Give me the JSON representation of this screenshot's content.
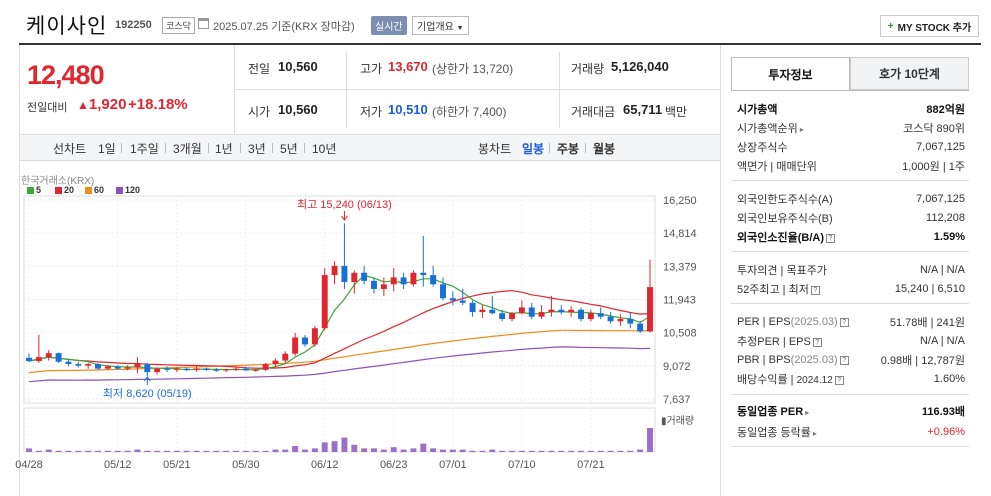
{
  "header": {
    "name": "케이사인",
    "code": "192250",
    "market": "코스닥",
    "date": "2025.07.25 기준(KRX 장마감)",
    "realtime_label": "실시간",
    "overview_label": "기업개요",
    "mystock_label": "MY STOCK 추가"
  },
  "price": {
    "current": "12,480",
    "change_label": "전일대비",
    "change": "1,920",
    "change_pct": "+18.18%"
  },
  "quote": {
    "prev_label": "전일",
    "prev": "10,560",
    "high_label": "고가",
    "high": "13,670",
    "upper_limit": "(상한가 13,720)",
    "volume_label": "거래량",
    "volume": "5,126,040",
    "open_label": "시가",
    "open": "10,560",
    "low_label": "저가",
    "low": "10,510",
    "lower_limit": "(하한가 7,400)",
    "amount_label": "거래대금",
    "amount": "65,711",
    "amount_unit": "백만"
  },
  "range_bar": {
    "line_label": "선차트",
    "line_ranges": [
      "1일",
      "1주일",
      "3개월",
      "1년",
      "3년",
      "5년",
      "10년"
    ],
    "candle_label": "봉차트",
    "candle_ranges": [
      "일봉",
      "주봉",
      "월봉"
    ],
    "active_candle": "일봉"
  },
  "chart_data": {
    "type": "candlestick",
    "source_label": "한국거래소(KRX)",
    "legend": [
      {
        "name": "5",
        "color": "#3ca53c"
      },
      {
        "name": "20",
        "color": "#e0262f"
      },
      {
        "name": "60",
        "color": "#f08a1c"
      },
      {
        "name": "120",
        "color": "#8a55b8"
      }
    ],
    "y_ticks": [
      "16,250",
      "14,814",
      "13,379",
      "11,943",
      "10,508",
      "9,072",
      "7,637"
    ],
    "ylim": [
      7637,
      16250
    ],
    "x_ticks": [
      {
        "label": "04/28",
        "index": 0
      },
      {
        "label": "05/12",
        "index": 9
      },
      {
        "label": "05/21",
        "index": 15
      },
      {
        "label": "05/30",
        "index": 22
      },
      {
        "label": "06/12",
        "index": 30
      },
      {
        "label": "06/23",
        "index": 37
      },
      {
        "label": "07/01",
        "index": 43
      },
      {
        "label": "07/10",
        "index": 50
      },
      {
        "label": "07/21",
        "index": 57
      }
    ],
    "high_note": "최고 15,240 (06/13)",
    "low_note": "최저 8,620 (05/19)",
    "volume_label": "거래량",
    "candles": [
      [
        9420,
        9600,
        9250,
        9280
      ],
      [
        9280,
        10420,
        9200,
        9450
      ],
      [
        9450,
        9750,
        9300,
        9620
      ],
      [
        9620,
        9650,
        9200,
        9250
      ],
      [
        9250,
        9350,
        9050,
        9150
      ],
      [
        9150,
        9250,
        9000,
        9080
      ],
      [
        9080,
        9200,
        8950,
        9150
      ],
      [
        9150,
        9200,
        8900,
        8950
      ],
      [
        8950,
        9100,
        8880,
        9050
      ],
      [
        9050,
        9100,
        8900,
        8950
      ],
      [
        8950,
        9100,
        8880,
        9000
      ],
      [
        9000,
        9450,
        8750,
        9150
      ],
      [
        9150,
        9200,
        8620,
        8800
      ],
      [
        8800,
        9000,
        8700,
        8950
      ],
      [
        8950,
        9050,
        8800,
        8900
      ],
      [
        8900,
        9000,
        8800,
        8950
      ],
      [
        8950,
        9000,
        8850,
        8900
      ],
      [
        8900,
        9050,
        8820,
        8960
      ],
      [
        8960,
        9000,
        8850,
        8900
      ],
      [
        8900,
        8980,
        8820,
        8870
      ],
      [
        8870,
        8950,
        8800,
        8920
      ],
      [
        8920,
        9000,
        8850,
        8950
      ],
      [
        8950,
        9050,
        8850,
        8880
      ],
      [
        8880,
        8950,
        8820,
        8900
      ],
      [
        8900,
        9200,
        8850,
        9150
      ],
      [
        9150,
        9400,
        9050,
        9300
      ],
      [
        9300,
        9700,
        9200,
        9600
      ],
      [
        9600,
        10500,
        9500,
        10300
      ],
      [
        10300,
        10400,
        9900,
        10000
      ],
      [
        10000,
        10800,
        9900,
        10700
      ],
      [
        10700,
        13300,
        10600,
        13000
      ],
      [
        13000,
        13600,
        12600,
        13400
      ],
      [
        13400,
        15240,
        12400,
        12700
      ],
      [
        12700,
        13200,
        12200,
        13100
      ],
      [
        13100,
        13400,
        12600,
        12750
      ],
      [
        12750,
        12900,
        12200,
        12400
      ],
      [
        12400,
        12900,
        12100,
        12600
      ],
      [
        12600,
        13300,
        12300,
        12900
      ],
      [
        12900,
        13100,
        12400,
        12600
      ],
      [
        12600,
        13200,
        12500,
        13100
      ],
      [
        13100,
        14700,
        12500,
        13000
      ],
      [
        13000,
        13400,
        12500,
        12600
      ],
      [
        12600,
        12900,
        11900,
        12000
      ],
      [
        12000,
        12300,
        11700,
        11900
      ],
      [
        11900,
        12400,
        11700,
        11800
      ],
      [
        11800,
        11900,
        11200,
        11400
      ],
      [
        11400,
        11700,
        11150,
        11500
      ],
      [
        11500,
        12100,
        11300,
        11350
      ],
      [
        11350,
        11500,
        11000,
        11100
      ],
      [
        11100,
        11400,
        11000,
        11350
      ],
      [
        11350,
        11900,
        11300,
        11600
      ],
      [
        11600,
        11800,
        11100,
        11200
      ],
      [
        11200,
        11700,
        11100,
        11400
      ],
      [
        11400,
        12100,
        11200,
        11500
      ],
      [
        11500,
        11700,
        11300,
        11400
      ],
      [
        11400,
        11650,
        11200,
        11500
      ],
      [
        11500,
        11600,
        11000,
        11100
      ],
      [
        11100,
        11500,
        11000,
        11350
      ],
      [
        11350,
        11600,
        11100,
        11200
      ],
      [
        11200,
        11400,
        10900,
        11000
      ],
      [
        11000,
        11300,
        10800,
        11100
      ],
      [
        11100,
        11400,
        10700,
        10900
      ],
      [
        10900,
        11000,
        10500,
        10560
      ],
      [
        10560,
        13670,
        10510,
        12480
      ]
    ],
    "volumes": [
      3,
      1,
      2,
      1,
      1,
      1,
      1,
      1,
      1,
      1,
      1,
      2,
      1,
      1,
      1,
      1,
      1,
      1,
      1,
      1,
      1,
      1,
      1,
      1,
      1,
      2,
      2,
      5,
      2,
      3,
      8,
      9,
      12,
      6,
      3,
      3,
      2,
      4,
      2,
      3,
      7,
      3,
      2,
      2,
      2,
      1,
      1,
      2,
      1,
      1,
      1,
      1,
      1,
      1,
      1,
      1,
      1,
      1,
      1,
      1,
      1,
      1,
      2,
      20
    ]
  },
  "tabs": {
    "info": "투자정보",
    "order_book": "호가 10단계"
  },
  "invest": {
    "mcap_label": "시가총액",
    "mcap": "882억원",
    "mcap_rank_label": "시가총액순위",
    "mcap_rank": "코스닥 890위",
    "shares_label": "상장주식수",
    "shares": "7,067,125",
    "par_label": "액면가",
    "unit_label": "매매단위",
    "par": "1,000원",
    "unit": "1주",
    "foreign_limit_label": "외국인한도주식수(A)",
    "foreign_limit": "7,067,125",
    "foreign_hold_label": "외국인보유주식수(B)",
    "foreign_hold": "112,208",
    "foreign_ratio_label": "외국인소진율(B/A)",
    "foreign_ratio": "1.59%",
    "opinion_label": "투자의견",
    "target_label": "목표주가",
    "opinion": "N/A",
    "target": "N/A",
    "w52_high_label": "52주최고",
    "w52_low_label": "최저",
    "w52_high": "15,240",
    "w52_low": "6,510",
    "per_label": "PER",
    "eps_label": "EPS",
    "per_year": "(2025.03)",
    "per": "51.78배",
    "eps": "241원",
    "est_per_label": "추정PER",
    "est_eps_label": "EPS",
    "est_per": "N/A",
    "est_eps": "N/A",
    "pbr_label": "PBR",
    "bps_label": "BPS",
    "pbr_year": "(2025.03)",
    "pbr": "0.98배",
    "bps": "12,787원",
    "div_label": "배당수익률",
    "div_year": "2024.12",
    "div": "1.60%",
    "ind_per_label": "동일업종 PER",
    "ind_per": "116.93배",
    "ind_chg_label": "동일업종 등락률",
    "ind_chg": "+0.96%"
  }
}
